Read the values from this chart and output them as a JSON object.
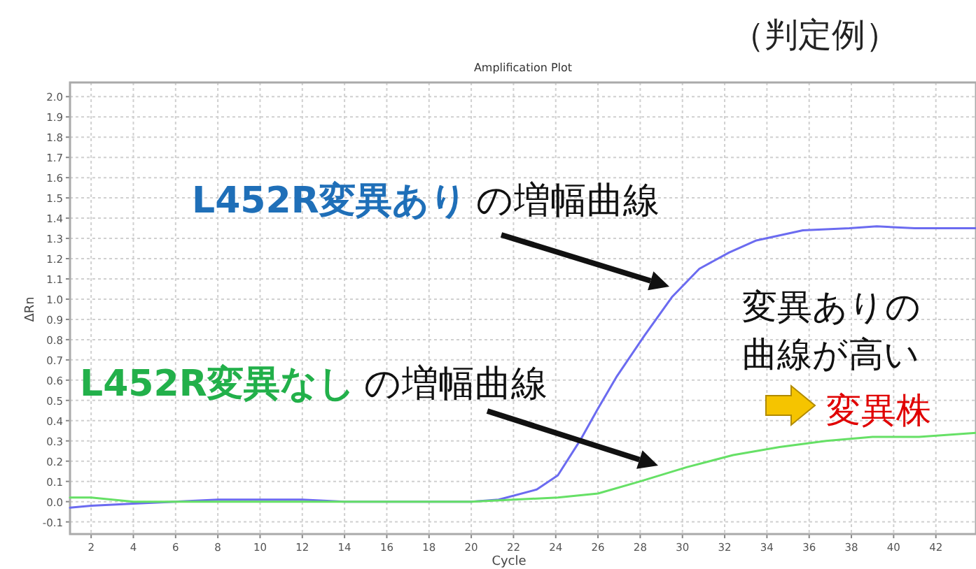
{
  "chart_data": {
    "type": "line",
    "title": "Amplification Plot",
    "subtitle": "（判定例）",
    "xlabel": "Cycle",
    "ylabel": "ΔRn",
    "xlim": [
      1,
      43.9
    ],
    "ylim": [
      -0.16,
      2.07
    ],
    "xticks": [
      2,
      4,
      6,
      8,
      10,
      12,
      14,
      16,
      18,
      20,
      22,
      24,
      26,
      28,
      30,
      32,
      34,
      36,
      38,
      40,
      42
    ],
    "yticks": [
      -0.1,
      {
        "value": 0,
        "label": "0.0"
      },
      0.1,
      0.2,
      0.3,
      0.4,
      0.5,
      0.6,
      0.7,
      0.8,
      0.9,
      {
        "value": 1,
        "label": "1.0"
      },
      1.1,
      1.2,
      1.3,
      1.4,
      1.5,
      1.6,
      1.7,
      1.8,
      1.9,
      {
        "value": 2,
        "label": "2.0"
      }
    ],
    "grid": true,
    "marker": "none",
    "line_style": "solid",
    "series": [
      {
        "color": "#6b6bf0",
        "x": [
          1,
          2,
          4,
          6,
          8,
          10,
          12,
          14,
          16,
          18,
          20,
          21.3,
          23.1,
          24.1,
          25.2,
          26.0,
          26.9,
          28.2,
          29.5,
          30.8,
          32.2,
          33.5,
          35.7,
          37.9,
          39.2,
          41,
          43.9
        ],
        "values": [
          -0.03,
          -0.02,
          -0.01,
          0,
          0.01,
          0.01,
          0.01,
          0,
          0,
          0,
          0,
          0.01,
          0.06,
          0.13,
          0.31,
          0.46,
          0.62,
          0.82,
          1.01,
          1.15,
          1.23,
          1.29,
          1.34,
          1.35,
          1.36,
          1.35,
          1.35
        ]
      },
      {
        "color": "#66e066",
        "x": [
          1,
          2,
          3,
          4,
          6,
          8,
          10,
          12,
          14,
          16,
          18,
          20,
          22,
          24.1,
          26,
          28,
          30.2,
          32.4,
          34.6,
          36.8,
          39,
          41.2,
          43.9
        ],
        "values": [
          0.02,
          0.02,
          0.01,
          0,
          0,
          0,
          0,
          0,
          0,
          0,
          0,
          0,
          0.01,
          0.02,
          0.04,
          0.1,
          0.17,
          0.23,
          0.27,
          0.3,
          0.32,
          0.32,
          0.34
        ]
      }
    ],
    "annotations": [
      "L452R変異あり",
      "の増幅曲線",
      "L452R変異なし",
      "の増幅曲線",
      "変異ありの",
      "曲線が高い",
      "変異株"
    ]
  }
}
